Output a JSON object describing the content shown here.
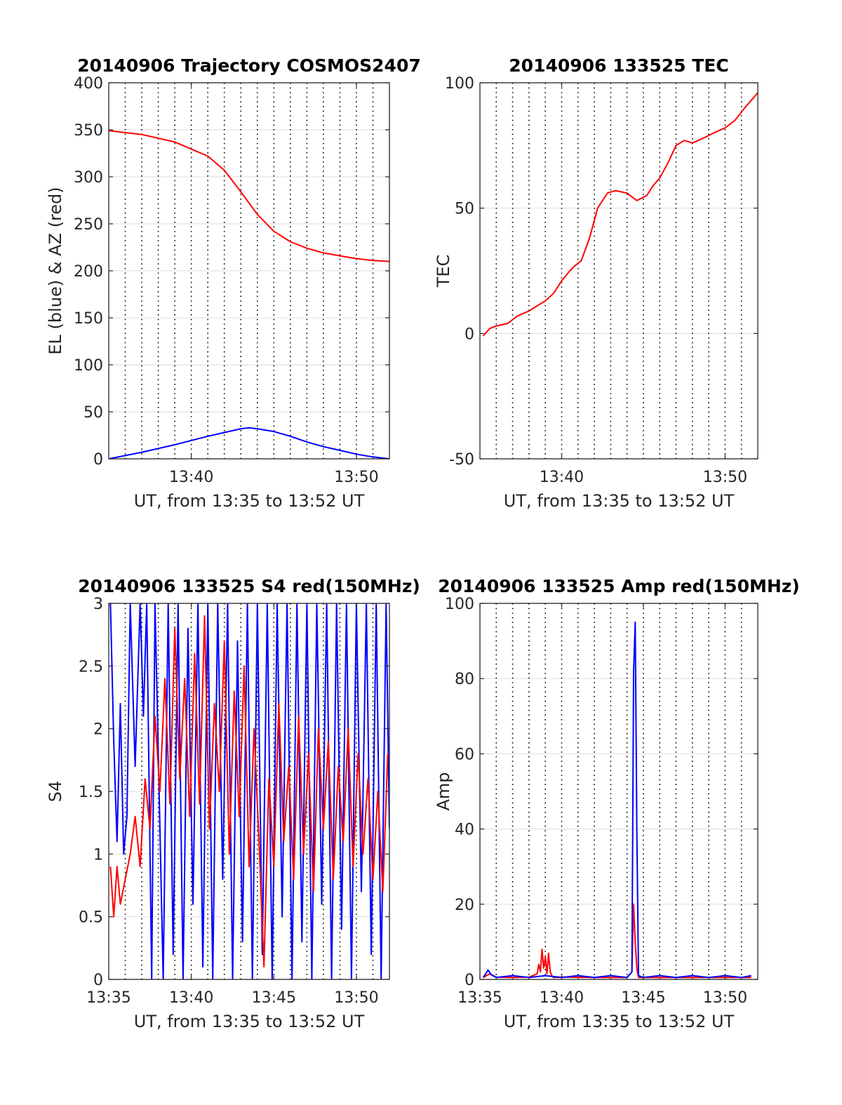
{
  "chart_data": [
    {
      "id": "traj",
      "type": "line",
      "title": "20140906 Trajectory COSMOS2407",
      "xlabel": "UT, from 13:35 to 13:52 UT",
      "ylabel": "EL (blue) & AZ (red)",
      "xlim": [
        13.35,
        13.52
      ],
      "ylim": [
        0,
        400
      ],
      "xticks": [
        {
          "v": 13.4,
          "label": "13:40"
        },
        {
          "v": 13.5,
          "label": "13:50"
        }
      ],
      "yticks": [
        {
          "v": 0,
          "label": "0"
        },
        {
          "v": 50,
          "label": "50"
        },
        {
          "v": 100,
          "label": "100"
        },
        {
          "v": 150,
          "label": "150"
        },
        {
          "v": 200,
          "label": "200"
        },
        {
          "v": 250,
          "label": "250"
        },
        {
          "v": 300,
          "label": "300"
        },
        {
          "v": 350,
          "label": "350"
        },
        {
          "v": 400,
          "label": "400"
        }
      ],
      "grid": true,
      "series": [
        {
          "color": "#ff0000",
          "x": [
            13.35,
            13.37,
            13.39,
            13.41,
            13.42,
            13.43,
            13.44,
            13.45,
            13.46,
            13.47,
            13.48,
            13.49,
            13.5,
            13.51,
            13.52
          ],
          "y": [
            349,
            345,
            337,
            322,
            307,
            284,
            260,
            242,
            231,
            224,
            219,
            216,
            213,
            211,
            210
          ]
        },
        {
          "color": "#0000ff",
          "x": [
            13.35,
            13.37,
            13.39,
            13.41,
            13.42,
            13.43,
            13.435,
            13.44,
            13.45,
            13.46,
            13.47,
            13.48,
            13.49,
            13.5,
            13.51,
            13.52
          ],
          "y": [
            0,
            7,
            15,
            24,
            28,
            32,
            33,
            32,
            29,
            24,
            18,
            13,
            9,
            5,
            2,
            0
          ]
        }
      ]
    },
    {
      "id": "tec",
      "type": "line",
      "title": "20140906 133525 TEC",
      "xlabel": "UT, from 13:35 to 13:52 UT",
      "ylabel": "TEC",
      "xlim": [
        13.35,
        13.52
      ],
      "ylim": [
        -50,
        100
      ],
      "xticks": [
        {
          "v": 13.4,
          "label": "13:40"
        },
        {
          "v": 13.5,
          "label": "13:50"
        }
      ],
      "yticks": [
        {
          "v": -50,
          "label": "-50"
        },
        {
          "v": 0,
          "label": "0"
        },
        {
          "v": 50,
          "label": "50"
        },
        {
          "v": 100,
          "label": "100"
        }
      ],
      "grid": true,
      "series": [
        {
          "color": "#ff0000",
          "x": [
            13.352,
            13.356,
            13.36,
            13.367,
            13.373,
            13.38,
            13.385,
            13.39,
            13.395,
            13.4,
            13.405,
            13.408,
            13.412,
            13.417,
            13.422,
            13.428,
            13.433,
            13.44,
            13.446,
            13.452,
            13.456,
            13.46,
            13.465,
            13.47,
            13.475,
            13.48,
            13.487,
            13.493,
            13.5,
            13.506,
            13.512,
            13.52
          ],
          "y": [
            -1,
            2,
            3,
            4,
            7,
            9,
            11,
            13,
            16,
            21,
            25,
            27,
            29,
            38,
            50,
            56,
            57,
            56,
            53,
            55,
            59,
            62,
            68,
            75,
            77,
            76,
            78,
            80,
            82,
            85,
            90,
            96
          ]
        }
      ]
    },
    {
      "id": "s4",
      "type": "line",
      "title": "20140906 133525 S4 red(150MHz)",
      "xlabel": "UT, from 13:35 to 13:52 UT",
      "ylabel": "S4",
      "xlim": [
        13.35,
        13.52
      ],
      "ylim": [
        0,
        3
      ],
      "xticks": [
        {
          "v": 13.35,
          "label": "13:35"
        },
        {
          "v": 13.4,
          "label": "13:40"
        },
        {
          "v": 13.45,
          "label": "13:45"
        },
        {
          "v": 13.5,
          "label": "13:50"
        }
      ],
      "yticks": [
        {
          "v": 0,
          "label": "0"
        },
        {
          "v": 0.5,
          "label": "0.5"
        },
        {
          "v": 1,
          "label": "1"
        },
        {
          "v": 1.5,
          "label": "1.5"
        },
        {
          "v": 2,
          "label": "2"
        },
        {
          "v": 2.5,
          "label": "2.5"
        },
        {
          "v": 3,
          "label": "3"
        }
      ],
      "grid": true,
      "series": [
        {
          "color": "#0000ff",
          "x": [
            13.351,
            13.353,
            13.355,
            13.357,
            13.359,
            13.361,
            13.363,
            13.366,
            13.369,
            13.371,
            13.373,
            13.376,
            13.378,
            13.38,
            13.383,
            13.386,
            13.389,
            13.392,
            13.395,
            13.398,
            13.401,
            13.404,
            13.407,
            13.41,
            13.413,
            13.416,
            13.419,
            13.422,
            13.425,
            13.428,
            13.431,
            13.434,
            13.437,
            13.44,
            13.443,
            13.446,
            13.449,
            13.452,
            13.455,
            13.458,
            13.461,
            13.464,
            13.467,
            13.47,
            13.473,
            13.476,
            13.479,
            13.482,
            13.485,
            13.488,
            13.491,
            13.494,
            13.497,
            13.5,
            13.503,
            13.506,
            13.509,
            13.512,
            13.515,
            13.518,
            13.52
          ],
          "y": [
            3,
            1.9,
            1.1,
            2.2,
            1.0,
            1.3,
            3,
            1.7,
            3,
            2.1,
            3,
            0.0,
            3,
            1.8,
            0.0,
            3,
            0.2,
            3,
            0.0,
            2.8,
            0.6,
            3,
            0.1,
            3,
            0.0,
            3,
            0.8,
            3,
            0.0,
            2.7,
            0.3,
            3,
            0.0,
            3,
            0.2,
            3,
            0.0,
            3,
            0.5,
            3,
            0.0,
            3,
            0.3,
            3,
            0.0,
            3,
            0.6,
            3,
            0.0,
            3,
            0.4,
            3,
            0.0,
            3,
            0.7,
            3,
            0.2,
            3,
            0.0,
            3,
            1.2
          ]
        },
        {
          "color": "#ff0000",
          "x": [
            13.351,
            13.353,
            13.355,
            13.357,
            13.36,
            13.363,
            13.366,
            13.369,
            13.372,
            13.375,
            13.378,
            13.381,
            13.384,
            13.387,
            13.39,
            13.393,
            13.396,
            13.399,
            13.402,
            13.405,
            13.408,
            13.411,
            13.414,
            13.417,
            13.42,
            13.423,
            13.426,
            13.429,
            13.432,
            13.435,
            13.438,
            13.441,
            13.444,
            13.447,
            13.45,
            13.453,
            13.456,
            13.459,
            13.462,
            13.465,
            13.468,
            13.471,
            13.474,
            13.477,
            13.48,
            13.483,
            13.486,
            13.489,
            13.492,
            13.495,
            13.498,
            13.501,
            13.504,
            13.507,
            13.51,
            13.513,
            13.516,
            13.519
          ],
          "y": [
            0.9,
            0.5,
            0.9,
            0.6,
            0.8,
            1.0,
            1.3,
            0.9,
            1.6,
            1.2,
            2.1,
            1.5,
            2.4,
            1.4,
            2.8,
            1.6,
            2.4,
            1.3,
            2.6,
            1.4,
            2.9,
            1.2,
            2.2,
            1.5,
            2.7,
            1.0,
            2.3,
            1.3,
            2.5,
            0.9,
            2.0,
            1.1,
            0.1,
            1.6,
            0.9,
            2.2,
            1.1,
            1.7,
            0.8,
            2.1,
            1.0,
            1.8,
            0.7,
            2.0,
            1.2,
            1.9,
            0.8,
            1.7,
            1.1,
            2.0,
            0.9,
            1.8,
            1.0,
            1.6,
            0.8,
            1.5,
            0.7,
            1.8
          ]
        }
      ]
    },
    {
      "id": "amp",
      "type": "line",
      "title": "20140906 133525 Amp red(150MHz)",
      "xlabel": "UT, from 13:35 to 13:52 UT",
      "ylabel": "Amp",
      "xlim": [
        13.35,
        13.52
      ],
      "ylim": [
        0,
        100
      ],
      "xticks": [
        {
          "v": 13.35,
          "label": "13:35"
        },
        {
          "v": 13.4,
          "label": "13:40"
        },
        {
          "v": 13.45,
          "label": "13:45"
        },
        {
          "v": 13.5,
          "label": "13:50"
        }
      ],
      "yticks": [
        {
          "v": 0,
          "label": "0"
        },
        {
          "v": 20,
          "label": "20"
        },
        {
          "v": 40,
          "label": "40"
        },
        {
          "v": 60,
          "label": "60"
        },
        {
          "v": 80,
          "label": "80"
        },
        {
          "v": 100,
          "label": "100"
        }
      ],
      "grid": true,
      "series": [
        {
          "color": "#ff0000",
          "x": [
            13.352,
            13.356,
            13.36,
            13.37,
            13.38,
            13.385,
            13.386,
            13.387,
            13.388,
            13.389,
            13.39,
            13.391,
            13.392,
            13.393,
            13.394,
            13.395,
            13.4,
            13.42,
            13.44,
            13.443,
            13.444,
            13.445,
            13.446,
            13.447,
            13.46,
            13.48,
            13.5,
            13.516
          ],
          "y": [
            0.5,
            1.5,
            0.6,
            0.5,
            0.6,
            1.5,
            4,
            2,
            8,
            3,
            6,
            1.5,
            7,
            2,
            1,
            0.5,
            0.6,
            0.5,
            0.5,
            2,
            20,
            10,
            3,
            0.5,
            0.5,
            0.5,
            0.5,
            0.5
          ]
        },
        {
          "color": "#0000ff",
          "x": [
            13.352,
            13.355,
            13.357,
            13.36,
            13.37,
            13.38,
            13.39,
            13.4,
            13.41,
            13.42,
            13.43,
            13.44,
            13.443,
            13.444,
            13.445,
            13.446,
            13.447,
            13.45,
            13.46,
            13.47,
            13.48,
            13.49,
            13.5,
            13.51,
            13.516
          ],
          "y": [
            0.5,
            2.5,
            1.2,
            0.5,
            1,
            0.5,
            1,
            0.5,
            1,
            0.5,
            1,
            0.5,
            2,
            82,
            95,
            40,
            1,
            0.5,
            1,
            0.5,
            1,
            0.5,
            1,
            0.5,
            1
          ]
        }
      ]
    }
  ]
}
